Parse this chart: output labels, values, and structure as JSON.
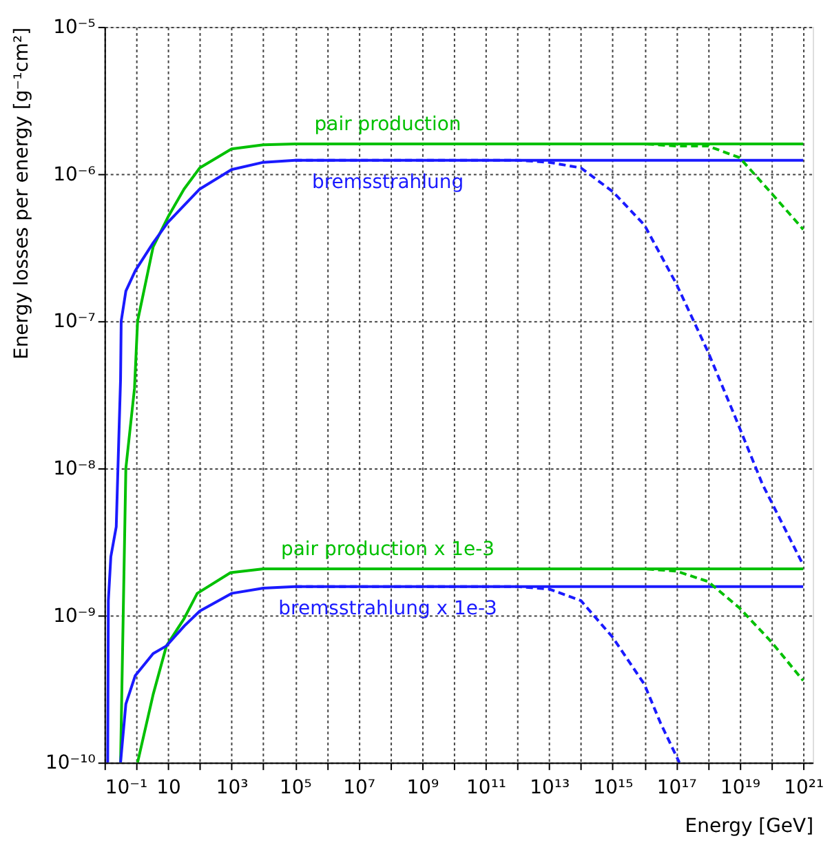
{
  "chart_data": {
    "type": "line",
    "xlabel": "Energy [GeV]",
    "ylabel": "Energy losses per energy [g⁻¹cm²]",
    "log": "xy",
    "grid": true,
    "marker": "none",
    "xlim": [
      0.1,
      2e+21
    ],
    "ylim": [
      1e-10,
      1e-05
    ],
    "xticks": [
      {
        "value": 0.1,
        "label": "10⁻¹"
      },
      {
        "value": 1,
        "label": null
      },
      10,
      {
        "value": 100,
        "label": null
      },
      {
        "value": 1000.0,
        "label": "10³"
      },
      {
        "value": 10000.0,
        "label": null
      },
      {
        "value": 100000.0,
        "label": "10⁵"
      },
      {
        "value": 1000000.0,
        "label": null
      },
      {
        "value": 10000000.0,
        "label": "10⁷"
      },
      {
        "value": 100000000.0,
        "label": null
      },
      {
        "value": 1000000000.0,
        "label": "10⁹"
      },
      {
        "value": 10000000000.0,
        "label": null
      },
      {
        "value": 100000000000.0,
        "label": "10¹¹"
      },
      {
        "value": 1000000000000.0,
        "label": null
      },
      {
        "value": 10000000000000.0,
        "label": "10¹³"
      },
      {
        "value": 100000000000000.0,
        "label": null
      },
      {
        "value": 1000000000000000.0,
        "label": "10¹⁵"
      },
      {
        "value": 1e+16,
        "label": null
      },
      {
        "value": 1e+17,
        "label": "10¹⁷"
      },
      {
        "value": 1e+18,
        "label": null
      },
      {
        "value": 1e+19,
        "label": "10¹⁹"
      },
      {
        "value": 1e+20,
        "label": null
      },
      {
        "value": 1e+21,
        "label": "10²¹"
      }
    ],
    "yticks": [
      {
        "value": 1e-10,
        "label": "10⁻¹⁰"
      },
      {
        "value": 1e-09,
        "label": "10⁻⁹"
      },
      {
        "value": 1e-08,
        "label": "10⁻⁸"
      },
      {
        "value": 1e-07,
        "label": "10⁻⁷"
      },
      {
        "value": 1e-06,
        "label": "10⁻⁶"
      },
      {
        "value": 1e-05,
        "label": "10⁻⁵"
      }
    ],
    "series": [
      {
        "name": "pair production",
        "color": "#00c000",
        "line_style": "solid",
        "x": [
          0.32,
          0.47,
          0.88,
          1.1,
          3.4,
          10,
          32,
          100,
          1000,
          10000.0,
          100000.0,
          1e+21
        ],
        "values": [
          1e-10,
          1e-08,
          3.5e-08,
          1e-07,
          3.2e-07,
          5.1e-07,
          7.9e-07,
          1.1e-06,
          1.48e-06,
          1.58e-06,
          1.6e-06,
          1.6e-06
        ]
      },
      {
        "name": "bremsstrahlung",
        "color": "#1a1aff",
        "line_style": "solid",
        "x": [
          0.126,
          0.132,
          0.158,
          0.234,
          0.282,
          0.32,
          0.335,
          0.47,
          0.93,
          3.4,
          10,
          100,
          1000,
          10000.0,
          100000.0,
          1e+21
        ],
        "values": [
          1e-10,
          1.26e-09,
          2.5e-09,
          4e-09,
          1.6e-08,
          4e-08,
          1e-07,
          1.6e-07,
          2.2e-07,
          3.4e-07,
          4.7e-07,
          7.9e-07,
          1.07e-06,
          1.2e-06,
          1.24e-06,
          1.24e-06
        ]
      },
      {
        "name": "pair production x 1e-3",
        "color": "#00c000",
        "line_style": "solid",
        "x": [
          1.1,
          3.4,
          8.9,
          32,
          83,
          930,
          10000.0,
          1e+21
        ],
        "values": [
          1e-10,
          2.9e-10,
          6.2e-10,
          9.5e-10,
          1.41e-09,
          1.95e-09,
          2.07e-09,
          2.07e-09
        ]
      },
      {
        "name": "bremsstrahlung x 1e-3",
        "color": "#1a1aff",
        "line_style": "solid",
        "x": [
          0.32,
          0.47,
          0.93,
          3.4,
          8.9,
          33,
          100,
          1000,
          10000.0,
          100000.0,
          1e+21
        ],
        "values": [
          1e-10,
          2.5e-10,
          3.9e-10,
          5.5e-10,
          6.2e-10,
          8.5e-10,
          1.07e-09,
          1.41e-09,
          1.53e-09,
          1.57e-09,
          1.57e-09
        ]
      },
      {
        "color": "#00c000",
        "line_style": "dashed",
        "x": [
          100000.0,
          1e+16,
          1e+17,
          1e+18,
          1e+19,
          1e+20,
          1e+21
        ],
        "values": [
          1.6e-06,
          1.6e-06,
          1.55e-06,
          1.55e-06,
          1.29e-06,
          7.4e-07,
          4.2e-07
        ]
      },
      {
        "color": "#1a1aff",
        "line_style": "dashed",
        "x": [
          100000.0,
          1000000000000.0,
          10000000000000.0,
          100000000000000.0,
          1000000000000000.0,
          1e+16,
          1e+17,
          1e+18,
          7.4e+18,
          5.2e+19,
          1e+21
        ],
        "values": [
          1.24e-06,
          1.24e-06,
          1.2e-06,
          1.1e-06,
          7.6e-07,
          4.5e-07,
          1.8e-07,
          6.2e-08,
          2.2e-08,
          7.8e-09,
          2.2e-09
        ]
      },
      {
        "color": "#00c000",
        "line_style": "dashed",
        "x": [
          100000.0,
          1e+16,
          1e+17,
          1e+18,
          1e+19,
          1e+20,
          1e+21
        ],
        "values": [
          2.07e-09,
          2.07e-09,
          2e-09,
          1.7e-09,
          1.12e-09,
          6.6e-10,
          3.6e-10
        ]
      },
      {
        "color": "#1a1aff",
        "line_style": "dashed",
        "x": [
          100000.0,
          1000000000000.0,
          10000000000000.0,
          100000000000000.0,
          1000000000000000.0,
          1e+16,
          3.2e+16,
          1.26e+17
        ],
        "values": [
          1.57e-09,
          1.57e-09,
          1.51e-09,
          1.26e-09,
          7.1e-10,
          3.4e-10,
          1.86e-10,
          1e-10
        ]
      }
    ]
  }
}
